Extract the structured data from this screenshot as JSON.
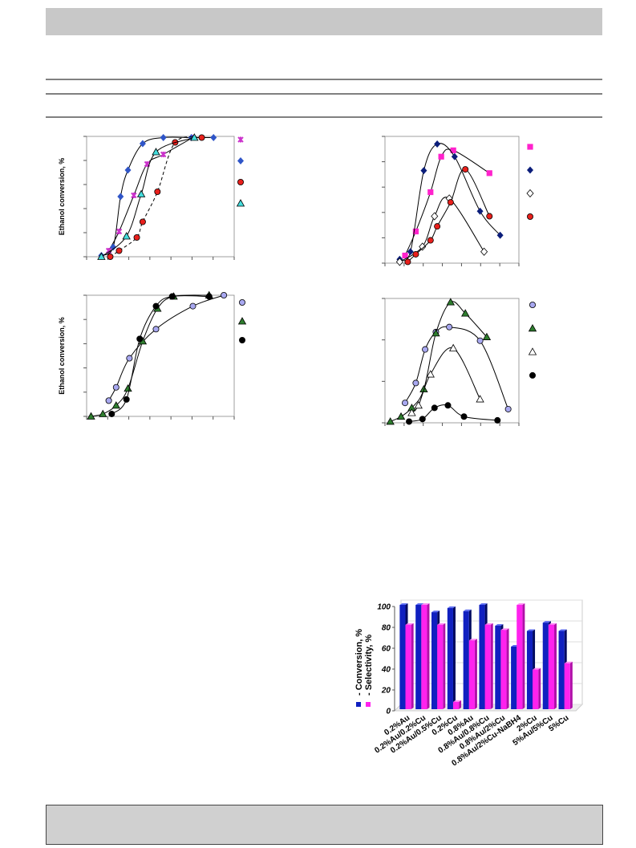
{
  "chart_data": [
    {
      "type": "scatter",
      "y_label": "Ethanol conversion, %",
      "xlim": [
        0,
        100
      ],
      "ylim": [
        0,
        100
      ],
      "series": [
        {
          "color": "#cc33cc",
          "marker": "x",
          "x": [
            15,
            22,
            32,
            41,
            52,
            72
          ],
          "y": [
            5,
            21,
            51,
            77,
            85,
            99
          ]
        },
        {
          "color": "#2f55c8",
          "marker": "diamond",
          "x": [
            10,
            18,
            23,
            28,
            38,
            52,
            71,
            86
          ],
          "y": [
            1,
            8,
            50,
            72,
            94,
            99,
            99,
            99
          ]
        },
        {
          "color": "#e8201c",
          "marker": "circle",
          "dashed": true,
          "x": [
            16,
            22,
            34,
            38,
            48,
            60,
            78
          ],
          "y": [
            0,
            5,
            16,
            29,
            54,
            95,
            99
          ]
        },
        {
          "color": "#44dddd",
          "marker": "triangle",
          "x": [
            10,
            27,
            37,
            47,
            73
          ],
          "y": [
            0,
            17,
            52,
            87,
            99
          ]
        }
      ]
    },
    {
      "type": "scatter",
      "xlim": [
        0,
        100
      ],
      "ylim": [
        0,
        100
      ],
      "series": [
        {
          "color": "#ff22cc",
          "marker": "square",
          "x": [
            15,
            23,
            34,
            42,
            51,
            78
          ],
          "y": [
            6,
            25,
            56,
            84,
            89,
            71
          ]
        },
        {
          "color": "#0b1d7a",
          "marker": "diamond",
          "x": [
            11,
            19,
            29,
            39,
            52,
            71,
            86
          ],
          "y": [
            3,
            9,
            73,
            94,
            84,
            41,
            22
          ]
        },
        {
          "color": "#ffffff",
          "marker": "diamond",
          "x": [
            11,
            28,
            37,
            48,
            74
          ],
          "y": [
            1,
            13,
            37,
            51,
            9
          ]
        },
        {
          "color": "#e8201c",
          "marker": "circle",
          "x": [
            17,
            23,
            34,
            39,
            49,
            60,
            78
          ],
          "y": [
            1,
            7,
            18,
            29,
            48,
            74,
            37
          ]
        }
      ]
    },
    {
      "type": "scatter",
      "y_label": "Ethanol conversion, %",
      "xlim": [
        0,
        100
      ],
      "ylim": [
        0,
        100
      ],
      "series": [
        {
          "color": "#a8a8f0",
          "marker": "circle",
          "x": [
            15,
            20,
            29,
            47,
            72,
            93
          ],
          "y": [
            13,
            24,
            48,
            72,
            91,
            100
          ]
        },
        {
          "color": "#2e7d2e",
          "marker": "triangle",
          "x": [
            3,
            11,
            20,
            28,
            38,
            48,
            59,
            83
          ],
          "y": [
            0,
            2,
            9,
            23,
            62,
            89,
            99,
            100
          ]
        },
        {
          "color": "#000000",
          "marker": "circle",
          "x": [
            17,
            27,
            36,
            47,
            58,
            83
          ],
          "y": [
            2,
            14,
            64,
            91,
            99,
            99
          ]
        }
      ]
    },
    {
      "type": "scatter",
      "xlim": [
        0,
        100
      ],
      "ylim": [
        0,
        100
      ],
      "series": [
        {
          "color": "#a8a8f0",
          "marker": "circle",
          "x": [
            15,
            23,
            30,
            38,
            48,
            71,
            92
          ],
          "y": [
            16,
            32,
            59,
            73,
            77,
            66,
            11
          ]
        },
        {
          "color": "#2e7d2e",
          "marker": "triangle",
          "x": [
            4,
            12,
            20,
            29,
            38,
            49,
            60,
            76
          ],
          "y": [
            1,
            5,
            12,
            27,
            72,
            97,
            88,
            69
          ]
        },
        {
          "color": "#ffffff",
          "marker": "triangle",
          "x": [
            20,
            25,
            34,
            51,
            71
          ],
          "y": [
            8,
            14,
            39,
            60,
            19
          ]
        },
        {
          "color": "#000000",
          "marker": "circle",
          "x": [
            18,
            28,
            37,
            47,
            59,
            84
          ],
          "y": [
            1,
            3,
            12,
            14,
            5,
            2
          ]
        }
      ]
    },
    {
      "type": "bar",
      "ylim": [
        0,
        100
      ],
      "yticks": [
        0,
        20,
        40,
        60,
        80,
        100
      ],
      "categories": [
        "0.2%Au",
        "0.2%Au/0.2%Cu",
        "0.2%Au/0.5%Cu",
        "0.2%Cu",
        "0.8%Au",
        "0.8%Au/0.8%Cu",
        "0.8%Au/2%Cu",
        "0.8%Au/2%Cu-NaBH4",
        "2%Cu",
        "5%Au/5%Cu",
        "5%Cu"
      ],
      "series": [
        {
          "name": "- Conversion, %",
          "color": "#1020c0",
          "values": [
            100,
            100,
            93,
            97,
            94,
            100,
            80,
            60,
            75,
            83,
            75
          ]
        },
        {
          "name": "- Selectivity, %",
          "color": "#ff22ee",
          "values": [
            81,
            100,
            81,
            7,
            66,
            81,
            76,
            100,
            38,
            81,
            44
          ]
        }
      ]
    }
  ]
}
